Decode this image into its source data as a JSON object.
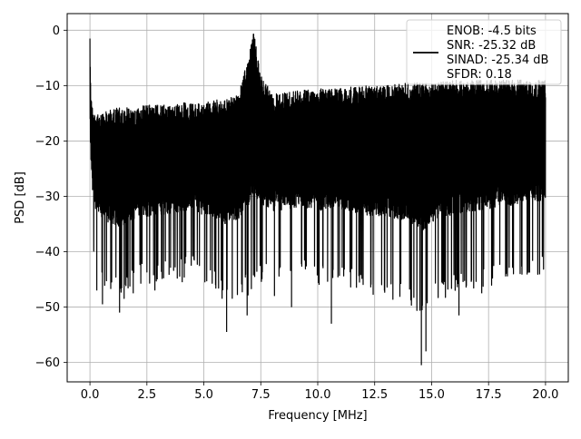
{
  "chart_data": {
    "type": "line",
    "title": "",
    "xlabel": "Frequency [MHz]",
    "ylabel": "PSD [dB]",
    "xlim": [
      -1.0,
      21.0
    ],
    "ylim": [
      -63.5,
      3.0
    ],
    "grid": true,
    "legend_position": "upper-right",
    "x_ticks": [
      0.0,
      2.5,
      5.0,
      7.5,
      10.0,
      12.5,
      15.0,
      17.5,
      20.0
    ],
    "x_tick_labels": [
      "0.0",
      "2.5",
      "5.0",
      "7.5",
      "10.0",
      "12.5",
      "15.0",
      "17.5",
      "20.0"
    ],
    "y_ticks": [
      0,
      -10,
      -20,
      -30,
      -40,
      -50,
      -60
    ],
    "y_tick_labels": [
      "0",
      "−10",
      "−20",
      "−30",
      "−40",
      "−50",
      "−60"
    ],
    "legend_lines": [
      "ENOB: -4.5 bits",
      "SNR: -25.32 dB",
      "SINAD: -25.34 dB",
      "SFDR: 0.18"
    ],
    "series": [
      {
        "color": "#000000",
        "description": "noisy power spectral density trace",
        "x": [
          0.0,
          0.05,
          0.1,
          0.2,
          0.3,
          0.5,
          1.0,
          1.5,
          2.0,
          2.5,
          3.0,
          3.5,
          4.0,
          4.5,
          5.0,
          5.5,
          6.0,
          6.5,
          7.0,
          7.2,
          7.5,
          8.0,
          9.0,
          10.0,
          11.0,
          12.0,
          13.0,
          14.0,
          14.6,
          15.0,
          16.0,
          17.0,
          18.0,
          19.0,
          20.0
        ],
        "upper": [
          -1.5,
          -12.0,
          -13.5,
          -14.5,
          -15.0,
          -15.0,
          -14.0,
          -14.0,
          -14.0,
          -13.5,
          -13.5,
          -13.5,
          -13.0,
          -13.0,
          -13.0,
          -12.5,
          -12.5,
          -11.5,
          -4.0,
          -0.2,
          -8.0,
          -11.5,
          -11.0,
          -10.5,
          -10.5,
          -10.0,
          -10.0,
          -9.5,
          -9.5,
          -9.5,
          -9.0,
          -9.0,
          -9.0,
          -9.0,
          -9.0
        ],
        "lower": [
          -27.0,
          -35.0,
          -40.0,
          -44.0,
          -42.0,
          -46.0,
          -48.0,
          -49.0,
          -46.0,
          -46.0,
          -46.0,
          -45.0,
          -45.0,
          -44.0,
          -46.0,
          -47.0,
          -49.0,
          -48.0,
          -48.0,
          -47.0,
          -46.0,
          -46.0,
          -45.0,
          -46.0,
          -46.0,
          -48.0,
          -48.0,
          -50.0,
          -53.0,
          -50.0,
          -48.0,
          -47.0,
          -46.0,
          -45.0,
          -44.0
        ],
        "dips": [
          [
            0.3,
            -47
          ],
          [
            0.55,
            -49.5
          ],
          [
            1.3,
            -51
          ],
          [
            1.9,
            -47.5
          ],
          [
            2.85,
            -47
          ],
          [
            4.05,
            -45.5
          ],
          [
            5.8,
            -48.5
          ],
          [
            6.0,
            -54.5
          ],
          [
            6.9,
            -51.5
          ],
          [
            8.1,
            -48
          ],
          [
            8.85,
            -50
          ],
          [
            10.6,
            -53
          ],
          [
            11.7,
            -46.5
          ],
          [
            14.55,
            -60.5
          ],
          [
            14.75,
            -58
          ],
          [
            16.2,
            -51.5
          ],
          [
            17.2,
            -47.5
          ]
        ]
      }
    ]
  }
}
